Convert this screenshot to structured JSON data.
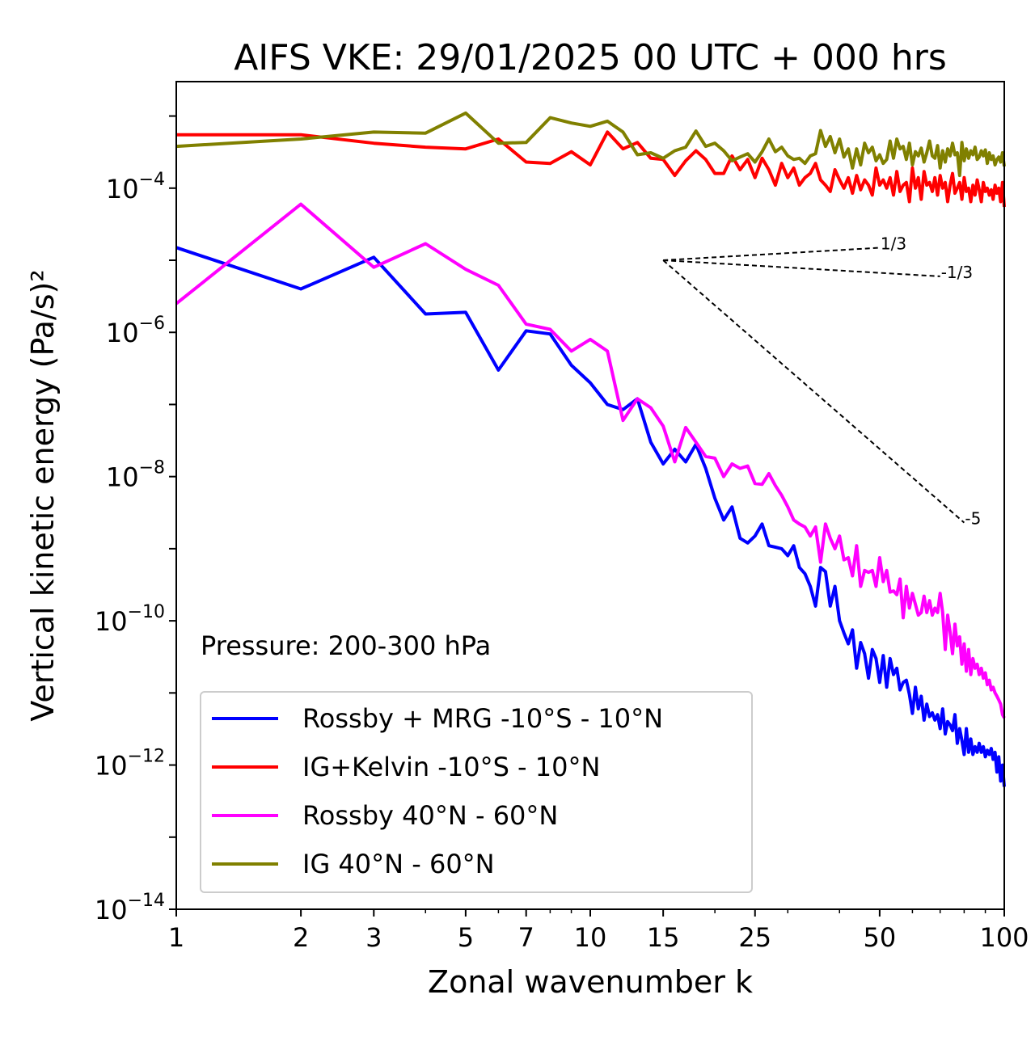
{
  "chart_data": {
    "type": "line",
    "title": "AIFS VKE: 29/01/2025 00 UTC + 000 hrs",
    "xlabel": "Zonal wavenumber k",
    "ylabel": "Vertical kinetic energy (Pa/s)²",
    "xscale": "log",
    "yscale": "log",
    "xlim": [
      1,
      100
    ],
    "ylim": [
      1e-14,
      0.003
    ],
    "x_ticks": [
      1,
      2,
      3,
      5,
      7,
      10,
      15,
      25,
      50,
      100
    ],
    "y_ticks": [
      {
        "value": 1e-14,
        "base": "10",
        "exp": "−14"
      },
      {
        "value": 1e-12,
        "base": "10",
        "exp": "−12"
      },
      {
        "value": 1e-10,
        "base": "10",
        "exp": "−10"
      },
      {
        "value": 1e-08,
        "base": "10",
        "exp": "−8"
      },
      {
        "value": 1e-06,
        "base": "10",
        "exp": "−6"
      },
      {
        "value": 0.0001,
        "base": "10",
        "exp": "−4"
      }
    ],
    "annotation": "Pressure: 200-300 hPa",
    "legend_position": "lower-left",
    "grid": false,
    "series": [
      {
        "name": "Rossby + MRG -10°S - 10°N",
        "color": "#0000ff",
        "x": [
          1,
          2,
          3,
          4,
          5,
          6,
          7,
          8,
          9,
          10,
          11,
          12,
          13,
          14,
          15,
          16,
          17,
          18,
          19,
          20,
          21,
          22,
          23,
          24,
          25,
          26,
          27,
          28,
          29,
          30,
          31,
          32,
          33,
          34,
          35,
          36,
          37,
          38,
          39,
          40,
          41,
          42,
          43,
          44,
          45,
          46,
          47,
          48,
          49,
          50,
          51,
          52,
          53,
          54,
          55,
          56,
          57,
          58,
          59,
          60,
          61,
          62,
          63,
          64,
          65,
          66,
          67,
          68,
          69,
          70,
          71,
          72,
          73,
          74,
          75,
          76,
          77,
          78,
          79,
          80,
          81,
          82,
          83,
          84,
          85,
          86,
          87,
          88,
          89,
          90,
          91,
          92,
          93,
          94,
          95,
          96,
          97,
          98,
          99,
          100
        ],
        "y": [
          1.5e-05,
          4e-06,
          1.1e-05,
          1.8e-06,
          1.9e-06,
          3e-07,
          1.05e-06,
          9.5e-07,
          3.5e-07,
          2e-07,
          1e-07,
          8.5e-08,
          1.2e-07,
          3e-08,
          1.5e-08,
          2.4e-08,
          1.6e-08,
          2.8e-08,
          1.3e-08,
          5e-09,
          2.5e-09,
          3.8e-09,
          1.4e-09,
          1.2e-09,
          1.5e-09,
          2.2e-09,
          1.1e-09,
          1.05e-09,
          1e-09,
          8e-10,
          1.1e-09,
          5.5e-10,
          4.5e-10,
          3e-10,
          1.6e-10,
          5.5e-10,
          4.8e-10,
          1.6e-10,
          3e-10,
          1e-10,
          6.8e-11,
          4.8e-11,
          7.5e-11,
          2.2e-11,
          5e-11,
          3.5e-11,
          1.6e-11,
          4e-11,
          3e-11,
          1.4e-11,
          3.3e-11,
          1.2e-11,
          3e-11,
          1.8e-11,
          2.2e-11,
          1.1e-11,
          1.4e-11,
          1.5e-11,
          9.5e-12,
          5.2e-12,
          1.2e-11,
          6e-12,
          9e-12,
          4.2e-12,
          7e-12,
          4.7e-12,
          5.3e-12,
          4.2e-12,
          5e-12,
          3.2e-12,
          6e-12,
          2.7e-12,
          4e-12,
          3.6e-12,
          3e-12,
          5e-12,
          2e-12,
          3.2e-12,
          2.2e-12,
          1.4e-12,
          3.2e-12,
          1.5e-12,
          2.3e-12,
          1.4e-12,
          1.8e-12,
          1.5e-12,
          2e-12,
          1.5e-12,
          1.8e-12,
          1.3e-12,
          1.6e-12,
          1.4e-12,
          1.7e-12,
          1.2e-12,
          1.5e-12,
          8e-13,
          1.3e-12,
          6e-13,
          1e-12,
          5e-13
        ]
      },
      {
        "name": "IG+Kelvin -10°S - 10°N",
        "color": "#ff0000",
        "x": [
          1,
          2,
          3,
          4,
          5,
          6,
          7,
          8,
          9,
          10,
          11,
          12,
          13,
          14,
          15,
          16,
          17,
          18,
          19,
          20,
          21,
          22,
          23,
          24,
          25,
          26,
          27,
          28,
          29,
          30,
          31,
          32,
          33,
          34,
          35,
          36,
          37,
          38,
          39,
          40,
          41,
          42,
          43,
          44,
          45,
          46,
          47,
          48,
          49,
          50,
          51,
          52,
          53,
          54,
          55,
          56,
          57,
          58,
          59,
          60,
          61,
          62,
          63,
          64,
          65,
          66,
          67,
          68,
          69,
          70,
          71,
          72,
          73,
          74,
          75,
          76,
          77,
          78,
          79,
          80,
          81,
          82,
          83,
          84,
          85,
          86,
          87,
          88,
          89,
          90,
          91,
          92,
          93,
          94,
          95,
          96,
          97,
          98,
          99,
          100
        ],
        "y": [
          0.00055,
          0.00055,
          0.00042,
          0.00037,
          0.00035,
          0.00048,
          0.00023,
          0.00022,
          0.00032,
          0.00021,
          0.0006,
          0.00035,
          0.00043,
          0.00026,
          0.00025,
          0.00015,
          0.00024,
          0.00033,
          0.00025,
          0.00016,
          0.00016,
          0.00028,
          0.00018,
          0.00025,
          0.00014,
          0.00026,
          0.00018,
          0.00011,
          0.00022,
          0.00014,
          0.00019,
          0.00011,
          0.00014,
          0.00016,
          0.00022,
          0.00013,
          0.00011,
          9e-05,
          0.00018,
          0.00013,
          0.0001,
          0.00014,
          8.5e-05,
          0.00015,
          9.5e-05,
          0.00013,
          0.00011,
          8e-05,
          0.00019,
          0.00011,
          0.00013,
          0.0001,
          0.00014,
          8e-05,
          0.00017,
          9e-05,
          0.00011,
          0.00012,
          6.5e-05,
          0.00019,
          0.0001,
          0.00014,
          7e-05,
          0.00017,
          0.00011,
          0.00012,
          9e-05,
          0.00014,
          8e-05,
          0.00015,
          0.0001,
          0.00012,
          6.5e-05,
          0.00011,
          0.00016,
          8.5e-05,
          0.0001,
          0.00012,
          7e-05,
          0.00014,
          9e-05,
          0.0001,
          6.5e-05,
          0.00011,
          8e-05,
          0.00013,
          9.5e-05,
          6.5e-05,
          0.00012,
          9e-05,
          0.0001,
          8e-05,
          9.5e-05,
          7e-05,
          0.00011,
          8.5e-05,
          0.0001,
          6.5e-05,
          0.00012,
          5.5e-05
        ]
      },
      {
        "name": "Rossby 40°N - 60°N",
        "color": "#ff00ff",
        "x": [
          1,
          2,
          3,
          4,
          5,
          6,
          7,
          8,
          9,
          10,
          11,
          12,
          13,
          14,
          15,
          16,
          17,
          18,
          19,
          20,
          21,
          22,
          23,
          24,
          25,
          26,
          27,
          28,
          29,
          30,
          31,
          32,
          33,
          34,
          35,
          36,
          37,
          38,
          39,
          40,
          41,
          42,
          43,
          44,
          45,
          46,
          47,
          48,
          49,
          50,
          51,
          52,
          53,
          54,
          55,
          56,
          57,
          58,
          59,
          60,
          61,
          62,
          63,
          64,
          65,
          66,
          67,
          68,
          69,
          70,
          71,
          72,
          73,
          74,
          75,
          76,
          77,
          78,
          79,
          80,
          81,
          82,
          83,
          84,
          85,
          86,
          87,
          88,
          89,
          90,
          91,
          92,
          93,
          94,
          95,
          96,
          97,
          98,
          99,
          100
        ],
        "y": [
          2.5e-06,
          6e-05,
          8e-06,
          1.7e-05,
          7.5e-06,
          4.5e-06,
          1.3e-06,
          1.1e-06,
          5.5e-07,
          8e-07,
          5.5e-07,
          6e-08,
          1.2e-07,
          9e-08,
          5e-08,
          1.6e-08,
          4.8e-08,
          3e-08,
          1.9e-08,
          1.8e-08,
          1e-08,
          1.5e-08,
          1.3e-08,
          1.4e-08,
          8e-09,
          7.8e-09,
          1.1e-08,
          7.5e-09,
          5.5e-09,
          3.8e-09,
          2.5e-09,
          2.2e-09,
          2e-09,
          1.5e-09,
          2e-09,
          6.5e-10,
          2.2e-09,
          1.4e-09,
          1e-09,
          1.5e-09,
          7e-10,
          7.5e-10,
          4.2e-10,
          1.1e-09,
          3e-10,
          5e-10,
          4.7e-10,
          5e-10,
          3e-10,
          7.5e-10,
          3.5e-10,
          5e-10,
          2.5e-10,
          2.6e-10,
          2.3e-10,
          3.8e-10,
          1.1e-10,
          3e-10,
          1.5e-10,
          2.4e-10,
          1.7e-10,
          1.2e-10,
          1.3e-10,
          2.2e-10,
          1.3e-10,
          1.9e-10,
          1.2e-10,
          1.5e-10,
          1.3e-10,
          2.4e-10,
          1.3e-10,
          4e-11,
          1.2e-10,
          7e-11,
          3.5e-11,
          9e-11,
          4.5e-11,
          6e-11,
          2.5e-11,
          4.8e-11,
          2e-11,
          4e-11,
          1.8e-11,
          3e-11,
          2.2e-11,
          2.5e-11,
          1.8e-11,
          2.2e-11,
          1.6e-11,
          1.9e-11,
          1.3e-11,
          1.5e-11,
          1.1e-11,
          1.2e-11,
          1e-11,
          9e-12,
          8e-12,
          7e-12,
          5e-12,
          4.5e-12
        ]
      },
      {
        "name": "IG 40°N - 60°N",
        "color": "#808000",
        "x": [
          1,
          2,
          3,
          4,
          5,
          6,
          7,
          8,
          9,
          10,
          11,
          12,
          13,
          14,
          15,
          16,
          17,
          18,
          19,
          20,
          21,
          22,
          23,
          24,
          25,
          26,
          27,
          28,
          29,
          30,
          31,
          32,
          33,
          34,
          35,
          36,
          37,
          38,
          39,
          40,
          41,
          42,
          43,
          44,
          45,
          46,
          47,
          48,
          49,
          50,
          51,
          52,
          53,
          54,
          55,
          56,
          57,
          58,
          59,
          60,
          61,
          62,
          63,
          64,
          65,
          66,
          67,
          68,
          69,
          70,
          71,
          72,
          73,
          74,
          75,
          76,
          77,
          78,
          79,
          80,
          81,
          82,
          83,
          84,
          85,
          86,
          87,
          88,
          89,
          90,
          91,
          92,
          93,
          94,
          95,
          96,
          97,
          98,
          99,
          100
        ],
        "y": [
          0.00038,
          0.00048,
          0.0006,
          0.00058,
          0.0011,
          0.00042,
          0.00043,
          0.00095,
          0.0008,
          0.00072,
          0.00085,
          0.0006,
          0.00029,
          0.00031,
          0.00026,
          0.00033,
          0.00037,
          0.00062,
          0.00038,
          0.00042,
          0.00033,
          0.00024,
          0.00027,
          0.0003,
          0.00023,
          0.00032,
          0.00048,
          0.00032,
          0.00037,
          0.00028,
          0.00025,
          0.00026,
          0.00022,
          0.00028,
          0.0003,
          0.00063,
          0.00038,
          0.00052,
          0.00031,
          0.00048,
          0.00027,
          0.00035,
          0.00019,
          0.00035,
          0.00021,
          0.00042,
          0.00031,
          0.00037,
          0.00024,
          0.00029,
          0.00022,
          0.00025,
          0.00045,
          0.00026,
          0.00048,
          0.00035,
          0.00038,
          0.00025,
          0.00042,
          0.00021,
          0.00032,
          0.00028,
          0.00036,
          0.00023,
          0.00031,
          0.00045,
          0.00028,
          0.00026,
          0.00039,
          0.00019,
          0.00033,
          0.00023,
          0.00035,
          0.00028,
          0.00042,
          0.00029,
          0.00031,
          0.00015,
          0.00043,
          0.00024,
          0.00035,
          0.00026,
          0.00033,
          0.00029,
          0.00037,
          0.00025,
          0.00027,
          0.00033,
          0.00028,
          0.00034,
          0.00022,
          0.00031,
          0.00025,
          0.00028,
          0.00021,
          0.00025,
          0.00027,
          0.00023,
          0.00031,
          0.0002
        ]
      }
    ],
    "reference_slopes": [
      {
        "label": "1/3",
        "x": [
          15,
          50
        ],
        "y": [
          1e-05,
          1.49e-05
        ]
      },
      {
        "label": "-1/3",
        "x": [
          15,
          70
        ],
        "y": [
          1e-05,
          5.98e-06
        ]
      },
      {
        "label": "-5",
        "x": [
          15,
          80
        ],
        "y": [
          1e-05,
          2.3e-09
        ]
      }
    ]
  }
}
